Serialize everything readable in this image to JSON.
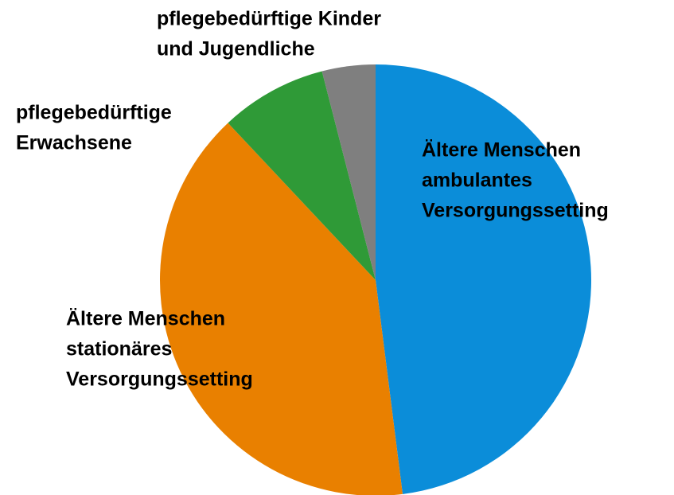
{
  "chart_data": {
    "type": "pie",
    "categories": [
      [
        "Ältere Menschen",
        "ambulantes",
        "Versorgungssetting"
      ],
      [
        "Ältere Menschen",
        "stationäres",
        "Versorgungssetting"
      ],
      [
        "pflegebedürftige",
        "Erwachsene"
      ],
      [
        "pflegebedürftige Kinder",
        "und Jugendliche"
      ]
    ],
    "values": [
      48,
      40,
      8,
      4
    ],
    "colors": [
      "#0b8dd9",
      "#e98000",
      "#2f9a37",
      "#7f7f7f"
    ]
  }
}
